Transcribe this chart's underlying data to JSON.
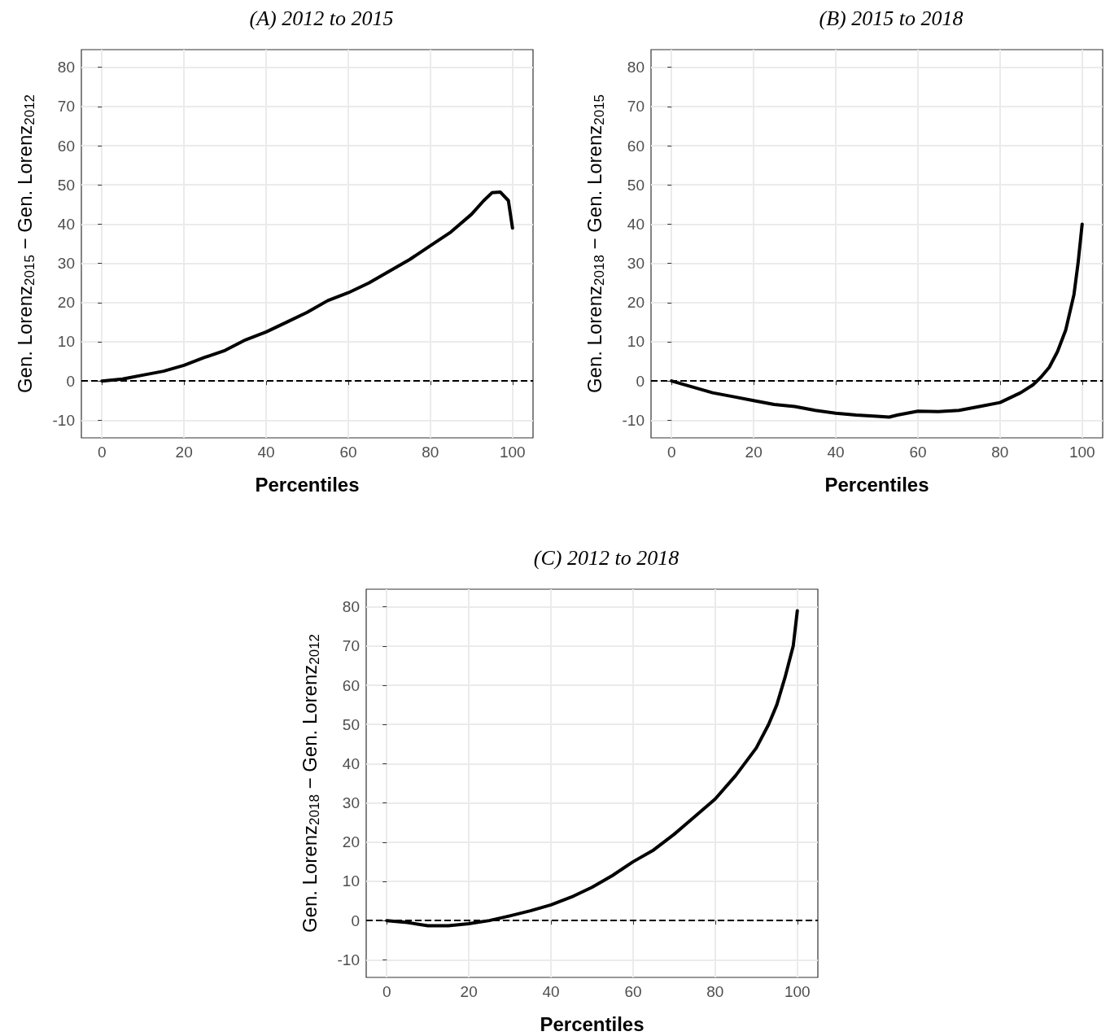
{
  "chart_data": [
    {
      "type": "line",
      "title": "(A) 2012 to 2015",
      "xlabel": "Percentiles",
      "ylabel": "Gen. Lorenz$_{2015}$ − Gen. Lorenz$_{2012}$",
      "x": [
        0,
        5,
        10,
        15,
        20,
        25,
        30,
        35,
        40,
        45,
        50,
        55,
        60,
        65,
        70,
        75,
        80,
        85,
        90,
        93,
        95,
        97,
        99,
        100
      ],
      "series": [
        {
          "color": "#000000",
          "values": [
            0,
            0.5,
            1.5,
            2.5,
            4,
            6,
            7.8,
            10.5,
            12.5,
            15,
            17.5,
            20.5,
            22.5,
            25,
            28,
            31,
            34.5,
            38,
            42.5,
            46,
            48,
            48.2,
            46,
            39
          ]
        }
      ],
      "xlim": [
        -5,
        105
      ],
      "ylim": [
        -14.5,
        84.5
      ],
      "xticks": [
        0,
        20,
        40,
        60,
        80,
        100
      ],
      "yticks": [
        -10,
        0,
        10,
        20,
        30,
        40,
        50,
        60,
        70,
        80
      ],
      "ref_lines": [
        {
          "axis": "y",
          "value": 0,
          "color": "#000000",
          "line_style": "dashed"
        }
      ],
      "grid": true,
      "marker": "none",
      "line_style": "solid"
    },
    {
      "type": "line",
      "title": "(B) 2015 to 2018",
      "xlabel": "Percentiles",
      "ylabel": "Gen. Lorenz$_{2018}$ − Gen. Lorenz$_{2015}$",
      "x": [
        0,
        5,
        10,
        15,
        20,
        25,
        30,
        35,
        40,
        45,
        50,
        53,
        55,
        60,
        65,
        70,
        75,
        80,
        85,
        88,
        90,
        92,
        94,
        96,
        98,
        99,
        100
      ],
      "series": [
        {
          "color": "#000000",
          "values": [
            0,
            -1.5,
            -3,
            -4,
            -5,
            -6,
            -6.5,
            -7.5,
            -8.2,
            -8.7,
            -9,
            -9.2,
            -8.7,
            -7.7,
            -7.8,
            -7.5,
            -6.5,
            -5.5,
            -3,
            -1,
            1,
            3.5,
            7.5,
            13,
            22,
            30,
            40
          ]
        }
      ],
      "xlim": [
        -5,
        105
      ],
      "ylim": [
        -14.5,
        84.5
      ],
      "xticks": [
        0,
        20,
        40,
        60,
        80,
        100
      ],
      "yticks": [
        -10,
        0,
        10,
        20,
        30,
        40,
        50,
        60,
        70,
        80
      ],
      "ref_lines": [
        {
          "axis": "y",
          "value": 0,
          "color": "#000000",
          "line_style": "dashed"
        }
      ],
      "grid": true,
      "marker": "none",
      "line_style": "solid"
    },
    {
      "type": "line",
      "title": "(C) 2012 to 2018",
      "xlabel": "Percentiles",
      "ylabel": "Gen. Lorenz$_{2018}$ − Gen. Lorenz$_{2012}$",
      "x": [
        0,
        5,
        10,
        15,
        20,
        25,
        30,
        35,
        40,
        45,
        50,
        55,
        60,
        65,
        70,
        75,
        80,
        85,
        90,
        93,
        95,
        97,
        99,
        100
      ],
      "series": [
        {
          "color": "#000000",
          "values": [
            0,
            -0.5,
            -1.3,
            -1.3,
            -0.8,
            0,
            1.2,
            2.5,
            4,
            6,
            8.5,
            11.5,
            15,
            18,
            22,
            26.5,
            31,
            37,
            44,
            50,
            55,
            62,
            70,
            79
          ]
        }
      ],
      "xlim": [
        -5,
        105
      ],
      "ylim": [
        -14.5,
        84.5
      ],
      "xticks": [
        0,
        20,
        40,
        60,
        80,
        100
      ],
      "yticks": [
        -10,
        0,
        10,
        20,
        30,
        40,
        50,
        60,
        70,
        80
      ],
      "ref_lines": [
        {
          "axis": "y",
          "value": 0,
          "color": "#000000",
          "line_style": "dashed"
        }
      ],
      "grid": true,
      "marker": "none",
      "line_style": "solid"
    }
  ]
}
